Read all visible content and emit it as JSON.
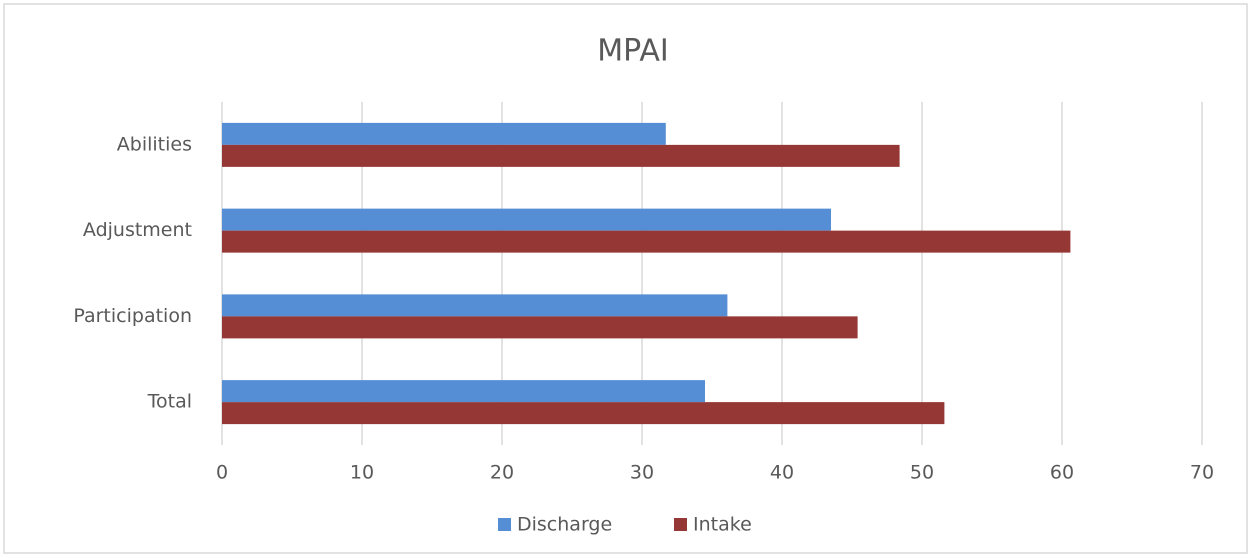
{
  "chart_data": {
    "type": "hbar",
    "title": "MPAI",
    "categories": [
      "Abilities",
      "Adjustment",
      "Participation",
      "Total"
    ],
    "series": [
      {
        "name": "Discharge",
        "color": "#558ed5",
        "values": [
          31.7,
          43.5,
          36.1,
          34.5
        ]
      },
      {
        "name": "Intake",
        "color": "#953735",
        "values": [
          48.4,
          60.6,
          45.4,
          51.6
        ]
      }
    ],
    "xlim": [
      0,
      70
    ],
    "xticks": [
      0,
      10,
      20,
      30,
      40,
      50,
      60,
      70
    ],
    "grid": true,
    "legend": "bottom"
  }
}
